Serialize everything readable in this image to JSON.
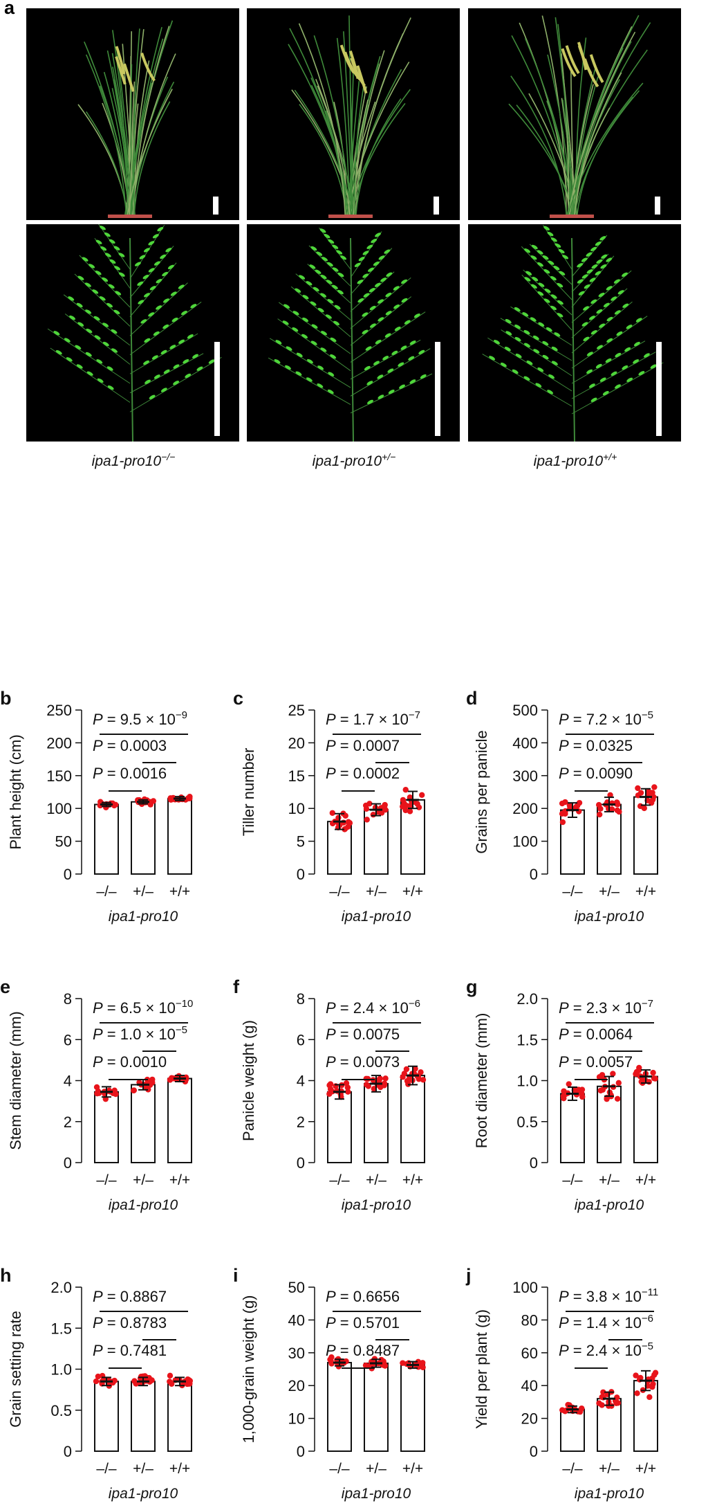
{
  "panel_a": {
    "letter": "a",
    "genotypes": [
      {
        "base": "ipa1-pro10",
        "sup": "−/−"
      },
      {
        "base": "ipa1-pro10",
        "sup": "+/−"
      },
      {
        "base": "ipa1-pro10",
        "sup": "+/+"
      }
    ]
  },
  "colors": {
    "points": "#e8141b",
    "photo_bg": "#000000",
    "plant": "#3f8a3a",
    "panicle": "#4fd63a"
  },
  "chart_data": [
    {
      "letter": "b",
      "type": "bar",
      "ylabel": "Plant height (cm)",
      "xlabel": "ipa1-pro10",
      "categories": [
        "–/–",
        "+/–",
        "+/+"
      ],
      "ylim": [
        0,
        250
      ],
      "ticks": [
        "0",
        "50",
        "100",
        "150",
        "200",
        "250"
      ],
      "means": [
        106,
        110,
        115
      ],
      "sd": [
        3,
        3,
        3
      ],
      "p": [
        {
          "t": " = 9.5 × 10",
          "e": "−9"
        },
        {
          "t": " = 0.0003",
          "e": ""
        },
        {
          "t": " = 0.0016",
          "e": ""
        }
      ]
    },
    {
      "letter": "c",
      "type": "bar",
      "ylabel": "Tiller number",
      "xlabel": "ipa1-pro10",
      "categories": [
        "–/–",
        "+/–",
        "+/+"
      ],
      "ylim": [
        0,
        25
      ],
      "ticks": [
        "0",
        "5",
        "10",
        "15",
        "20",
        "25"
      ],
      "means": [
        8,
        9.8,
        11.3
      ],
      "sd": [
        1.2,
        0.9,
        1.3
      ],
      "p": [
        {
          "t": " = 1.7 × 10",
          "e": "−7"
        },
        {
          "t": " = 0.0007",
          "e": ""
        },
        {
          "t": " = 0.0002",
          "e": ""
        }
      ]
    },
    {
      "letter": "d",
      "type": "bar",
      "ylabel": "Grains per panicle",
      "xlabel": "ipa1-pro10",
      "categories": [
        "–/–",
        "+/–",
        "+/+"
      ],
      "ylim": [
        0,
        500
      ],
      "ticks": [
        "0",
        "100",
        "200",
        "300",
        "400",
        "500"
      ],
      "means": [
        195,
        212,
        235
      ],
      "sd": [
        22,
        22,
        25
      ],
      "p": [
        {
          "t": " = 7.2 × 10",
          "e": "−5"
        },
        {
          "t": " = 0.0325",
          "e": ""
        },
        {
          "t": " = 0.0090",
          "e": ""
        }
      ]
    },
    {
      "letter": "e",
      "type": "bar",
      "ylabel": "Stem diameter (mm)",
      "xlabel": "ipa1-pro10",
      "categories": [
        "–/–",
        "+/–",
        "+/+"
      ],
      "ylim": [
        0,
        8
      ],
      "ticks": [
        "0",
        "2",
        "4",
        "6",
        "8"
      ],
      "means": [
        3.45,
        3.8,
        4.1
      ],
      "sd": [
        0.25,
        0.25,
        0.15
      ],
      "p": [
        {
          "t": " = 6.5 × 10",
          "e": "−10"
        },
        {
          "t": " = 1.0 × 10",
          "e": "−5"
        },
        {
          "t": " = 0.0010",
          "e": ""
        }
      ]
    },
    {
      "letter": "f",
      "type": "bar",
      "ylabel": "Panicle weight (g)",
      "xlabel": "ipa1-pro10",
      "categories": [
        "–/–",
        "+/–",
        "+/+"
      ],
      "ylim": [
        0,
        8
      ],
      "ticks": [
        "0",
        "2",
        "4",
        "6",
        "8"
      ],
      "means": [
        3.45,
        3.85,
        4.25
      ],
      "sd": [
        0.35,
        0.4,
        0.45
      ],
      "p": [
        {
          "t": " = 2.4 × 10",
          "e": "−6"
        },
        {
          "t": " = 0.0075",
          "e": ""
        },
        {
          "t": " = 0.0073",
          "e": ""
        }
      ]
    },
    {
      "letter": "g",
      "type": "bar",
      "ylabel": "Root diameter (mm)",
      "xlabel": "ipa1-pro10",
      "categories": [
        "–/–",
        "+/–",
        "+/+"
      ],
      "ylim": [
        0,
        2
      ],
      "ticks": [
        "0",
        "0.5",
        "1.0",
        "1.5",
        "2.0"
      ],
      "means": [
        0.84,
        0.93,
        1.05
      ],
      "sd": [
        0.08,
        0.12,
        0.08
      ],
      "p": [
        {
          "t": " = 2.3 × 10",
          "e": "−7"
        },
        {
          "t": " = 0.0064",
          "e": ""
        },
        {
          "t": " = 0.0057",
          "e": ""
        }
      ]
    },
    {
      "letter": "h",
      "type": "bar",
      "ylabel": "Grain setting rate",
      "xlabel": "ipa1-pro10",
      "categories": [
        "–/–",
        "+/–",
        "+/+"
      ],
      "ylim": [
        0,
        2
      ],
      "ticks": [
        "0",
        "0.5",
        "1.0",
        "1.5",
        "2.0"
      ],
      "means": [
        0.85,
        0.85,
        0.85
      ],
      "sd": [
        0.05,
        0.05,
        0.05
      ],
      "p": [
        {
          "t": " = 0.8867",
          "e": ""
        },
        {
          "t": " = 0.8783",
          "e": ""
        },
        {
          "t": " = 0.7481",
          "e": ""
        }
      ]
    },
    {
      "letter": "i",
      "type": "bar",
      "ylabel": "1,000-grain weight (g)",
      "xlabel": "ipa1-pro10",
      "categories": [
        "–/–",
        "+/–",
        "+/+"
      ],
      "ylim": [
        0,
        50
      ],
      "ticks": [
        "0",
        "10",
        "20",
        "30",
        "40",
        "50"
      ],
      "means": [
        27,
        26.8,
        26.3
      ],
      "sd": [
        1,
        1.2,
        1
      ],
      "p": [
        {
          "t": " = 0.6656",
          "e": ""
        },
        {
          "t": " = 0.5701",
          "e": ""
        },
        {
          "t": " = 0.8487",
          "e": ""
        }
      ]
    },
    {
      "letter": "j",
      "type": "bar",
      "ylabel": "Yield per plant (g)",
      "xlabel": "ipa1-pro10",
      "categories": [
        "–/–",
        "+/–",
        "+/+"
      ],
      "ylim": [
        0,
        100
      ],
      "ticks": [
        "0",
        "20",
        "40",
        "60",
        "80",
        "100"
      ],
      "means": [
        25.5,
        32,
        43
      ],
      "sd": [
        2,
        4,
        6
      ],
      "p": [
        {
          "t": " = 3.8 × 10",
          "e": "−11"
        },
        {
          "t": " = 1.4 × 10",
          "e": "−6"
        },
        {
          "t": " = 2.4 × 10",
          "e": "−5"
        }
      ]
    }
  ]
}
